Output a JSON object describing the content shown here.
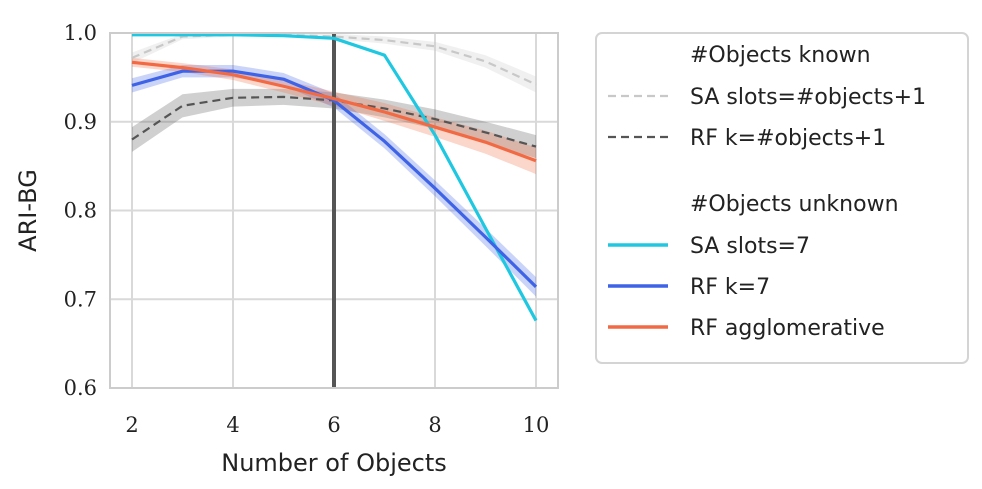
{
  "chart_data": {
    "type": "line",
    "title": "",
    "xlabel": "Number of Objects",
    "ylabel": "ARI-BG",
    "xlim": [
      2,
      10
    ],
    "ylim": [
      0.6,
      1.0
    ],
    "x_ticks": [
      2,
      4,
      6,
      8,
      10
    ],
    "y_ticks": [
      0.6,
      0.7,
      0.8,
      0.9,
      1.0
    ],
    "y_tick_labels": [
      "0.6",
      "0.7",
      "0.8",
      "0.9",
      "1.0"
    ],
    "grid": true,
    "vline_x": 6,
    "legend_placement": "outside-right",
    "x": [
      2,
      3,
      4,
      5,
      6,
      7,
      8,
      9,
      10
    ],
    "series": [
      {
        "name": "SA slots=#objects+1",
        "color": "#c8c8c8",
        "dash": true,
        "group": "#Objects known",
        "values": [
          0.972,
          0.996,
          0.998,
          0.998,
          0.996,
          0.992,
          0.985,
          0.968,
          0.942
        ],
        "band": [
          0.006,
          0.003,
          0.002,
          0.002,
          0.003,
          0.004,
          0.005,
          0.007,
          0.009
        ]
      },
      {
        "name": "RF k=#objects+1",
        "color": "#555555",
        "dash": true,
        "group": "#Objects known",
        "values": [
          0.88,
          0.918,
          0.927,
          0.928,
          0.924,
          0.915,
          0.903,
          0.888,
          0.872
        ],
        "band": [
          0.014,
          0.013,
          0.01,
          0.009,
          0.009,
          0.01,
          0.011,
          0.012,
          0.013
        ]
      },
      {
        "name": "SA slots=7",
        "color": "#1fc8e0",
        "dash": false,
        "group": "#Objects unknown",
        "values": [
          0.998,
          0.998,
          0.998,
          0.997,
          0.994,
          0.975,
          0.885,
          0.78,
          0.676
        ],
        "band": [
          0,
          0,
          0,
          0,
          0,
          0,
          0,
          0,
          0
        ]
      },
      {
        "name": "RF k=7",
        "color": "#3f63e6",
        "dash": false,
        "group": "#Objects unknown",
        "values": [
          0.941,
          0.957,
          0.957,
          0.948,
          0.924,
          0.878,
          0.825,
          0.77,
          0.714
        ],
        "band": [
          0.008,
          0.007,
          0.007,
          0.007,
          0.008,
          0.008,
          0.009,
          0.01,
          0.011
        ]
      },
      {
        "name": "RF agglomerative",
        "color": "#f26a43",
        "dash": false,
        "group": "#Objects unknown",
        "values": [
          0.967,
          0.961,
          0.953,
          0.94,
          0.926,
          0.911,
          0.894,
          0.877,
          0.856
        ],
        "band": [
          0.005,
          0.005,
          0.006,
          0.007,
          0.008,
          0.01,
          0.011,
          0.013,
          0.015
        ]
      }
    ],
    "legend": {
      "groups": [
        {
          "title": "#Objects known",
          "entries": [
            "SA slots=#objects+1",
            "RF k=#objects+1"
          ]
        },
        {
          "title": "#Objects unknown",
          "entries": [
            "SA slots=7",
            "RF k=7",
            "RF agglomerative"
          ]
        }
      ]
    }
  }
}
